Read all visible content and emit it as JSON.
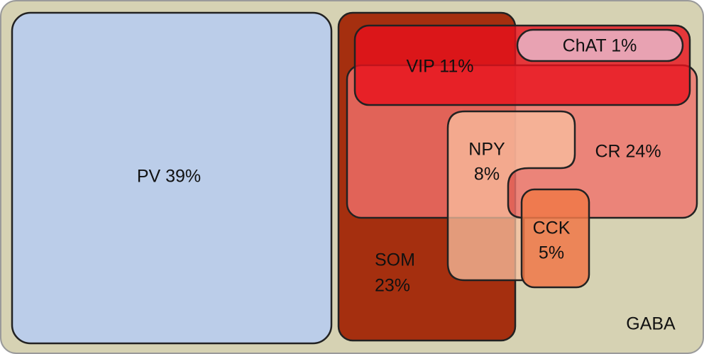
{
  "regions": [
    {
      "label": "GABA"
    },
    {
      "label": "PV 39%"
    },
    {
      "lines": [
        "SOM",
        "23%"
      ]
    },
    {
      "label": "VIP 11%"
    },
    {
      "label": "ChAT 1%"
    },
    {
      "label": "CR 24%"
    },
    {
      "lines": [
        "NPY",
        "8%"
      ]
    },
    {
      "lines": [
        "CCK",
        "5%"
      ]
    }
  ]
}
